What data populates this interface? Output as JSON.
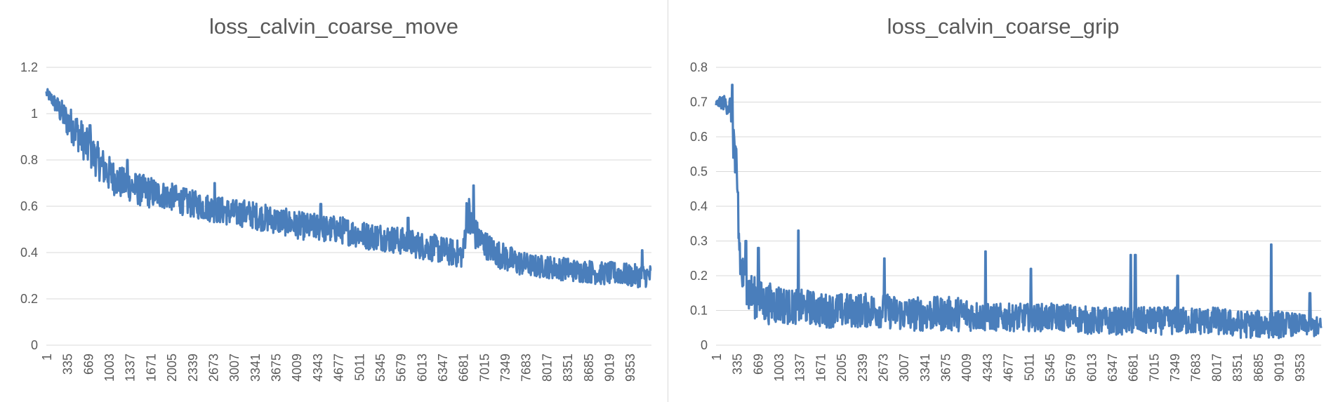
{
  "chart_data": [
    {
      "type": "line",
      "title": "loss_calvin_coarse_move",
      "xlabel": "",
      "ylabel": "",
      "ylim": [
        0,
        1.2
      ],
      "y_ticks": [
        "0",
        "0.2",
        "0.4",
        "0.6",
        "0.8",
        "1",
        "1.2"
      ],
      "x_range": [
        1,
        9700
      ],
      "x_ticks": [
        "1",
        "335",
        "669",
        "1003",
        "1337",
        "1671",
        "2005",
        "2339",
        "2673",
        "3007",
        "3341",
        "3675",
        "4009",
        "4343",
        "4677",
        "5011",
        "5345",
        "5679",
        "6013",
        "6347",
        "6681",
        "7015",
        "7349",
        "7683",
        "8017",
        "8351",
        "8685",
        "9019",
        "9353"
      ],
      "grid": true,
      "legend": "none",
      "color": "#4a7ebb",
      "series": [
        {
          "x": [
            1,
            100,
            200,
            335,
            500,
            669,
            850,
            1003,
            1200,
            1337,
            1500,
            1671,
            1850,
            2005,
            2200,
            2339,
            2500,
            2673,
            2850,
            3007,
            3200,
            3341,
            3500,
            3675,
            3850,
            4009,
            4200,
            4343,
            4500,
            4677,
            4850,
            5011,
            5200,
            5345,
            5500,
            5679,
            5850,
            6013,
            6200,
            6347,
            6500,
            6681,
            6750,
            6800,
            6900,
            7015,
            7200,
            7349,
            7500,
            7683,
            7850,
            8017,
            8200,
            8351,
            8500,
            8685,
            8850,
            9019,
            9200,
            9353,
            9500,
            9700
          ],
          "y": [
            1.09,
            1.06,
            1.02,
            0.97,
            0.92,
            0.85,
            0.79,
            0.74,
            0.7,
            0.69,
            0.67,
            0.66,
            0.65,
            0.64,
            0.62,
            0.61,
            0.6,
            0.59,
            0.58,
            0.57,
            0.57,
            0.56,
            0.55,
            0.54,
            0.53,
            0.52,
            0.51,
            0.51,
            0.5,
            0.5,
            0.49,
            0.48,
            0.47,
            0.47,
            0.46,
            0.45,
            0.44,
            0.43,
            0.42,
            0.41,
            0.4,
            0.39,
            0.6,
            0.52,
            0.47,
            0.44,
            0.4,
            0.38,
            0.36,
            0.35,
            0.34,
            0.34,
            0.33,
            0.33,
            0.32,
            0.32,
            0.31,
            0.31,
            0.31,
            0.3,
            0.3,
            0.3
          ],
          "band": [
            0.02,
            0.03,
            0.05,
            0.07,
            0.08,
            0.08,
            0.08,
            0.08,
            0.07,
            0.07,
            0.07,
            0.07,
            0.06,
            0.06,
            0.06,
            0.06,
            0.06,
            0.06,
            0.06,
            0.06,
            0.06,
            0.06,
            0.06,
            0.06,
            0.06,
            0.06,
            0.06,
            0.06,
            0.06,
            0.06,
            0.06,
            0.06,
            0.06,
            0.06,
            0.06,
            0.06,
            0.06,
            0.06,
            0.06,
            0.06,
            0.06,
            0.06,
            0.1,
            0.08,
            0.07,
            0.06,
            0.06,
            0.06,
            0.06,
            0.05,
            0.05,
            0.05,
            0.05,
            0.05,
            0.05,
            0.05,
            0.05,
            0.05,
            0.05,
            0.05,
            0.05,
            0.05
          ],
          "spikes": [
            [
              700,
              0.95
            ],
            [
              1300,
              0.8
            ],
            [
              2700,
              0.7
            ],
            [
              4400,
              0.61
            ],
            [
              5800,
              0.55
            ],
            [
              6850,
              0.69
            ],
            [
              9550,
              0.41
            ]
          ]
        }
      ]
    },
    {
      "type": "line",
      "title": "loss_calvin_coarse_grip",
      "xlabel": "",
      "ylabel": "",
      "ylim": [
        0,
        0.8
      ],
      "y_ticks": [
        "0",
        "0.1",
        "0.2",
        "0.3",
        "0.4",
        "0.5",
        "0.6",
        "0.7",
        "0.8"
      ],
      "x_range": [
        1,
        9700
      ],
      "x_ticks": [
        "1",
        "335",
        "669",
        "1003",
        "1337",
        "1671",
        "2005",
        "2339",
        "2673",
        "3007",
        "3341",
        "3675",
        "4009",
        "4343",
        "4677",
        "5011",
        "5345",
        "5679",
        "6013",
        "6347",
        "6681",
        "7015",
        "7349",
        "7683",
        "8017",
        "8351",
        "8685",
        "9019",
        "9353"
      ],
      "grid": true,
      "legend": "none",
      "color": "#4a7ebb",
      "series": [
        {
          "x": [
            1,
            100,
            200,
            250,
            300,
            335,
            370,
            400,
            450,
            500,
            600,
            669,
            800,
            1003,
            1200,
            1337,
            1500,
            1671,
            1850,
            2005,
            2339,
            2673,
            3007,
            3341,
            3675,
            4009,
            4343,
            4677,
            5011,
            5345,
            5679,
            6013,
            6347,
            6681,
            7015,
            7349,
            7683,
            8017,
            8351,
            8685,
            9019,
            9353,
            9700
          ],
          "y": [
            0.695,
            0.7,
            0.69,
            0.68,
            0.55,
            0.42,
            0.3,
            0.22,
            0.18,
            0.16,
            0.14,
            0.13,
            0.12,
            0.12,
            0.11,
            0.11,
            0.11,
            0.1,
            0.1,
            0.1,
            0.1,
            0.1,
            0.09,
            0.09,
            0.09,
            0.09,
            0.08,
            0.08,
            0.08,
            0.08,
            0.08,
            0.07,
            0.07,
            0.07,
            0.07,
            0.07,
            0.07,
            0.07,
            0.06,
            0.06,
            0.06,
            0.06,
            0.05
          ],
          "band": [
            0.01,
            0.02,
            0.03,
            0.05,
            0.1,
            0.12,
            0.12,
            0.08,
            0.07,
            0.07,
            0.06,
            0.06,
            0.06,
            0.06,
            0.05,
            0.05,
            0.05,
            0.05,
            0.05,
            0.05,
            0.05,
            0.05,
            0.05,
            0.05,
            0.05,
            0.05,
            0.04,
            0.04,
            0.04,
            0.04,
            0.04,
            0.04,
            0.04,
            0.04,
            0.04,
            0.04,
            0.04,
            0.04,
            0.04,
            0.04,
            0.04,
            0.03,
            0.03
          ],
          "spikes": [
            [
              260,
              0.75
            ],
            [
              350,
              0.44
            ],
            [
              480,
              0.3
            ],
            [
              680,
              0.28
            ],
            [
              1320,
              0.33
            ],
            [
              2700,
              0.25
            ],
            [
              4320,
              0.27
            ],
            [
              5050,
              0.22
            ],
            [
              6650,
              0.26
            ],
            [
              6720,
              0.26
            ],
            [
              7400,
              0.2
            ],
            [
              8900,
              0.29
            ],
            [
              9520,
              0.15
            ]
          ]
        }
      ]
    }
  ]
}
